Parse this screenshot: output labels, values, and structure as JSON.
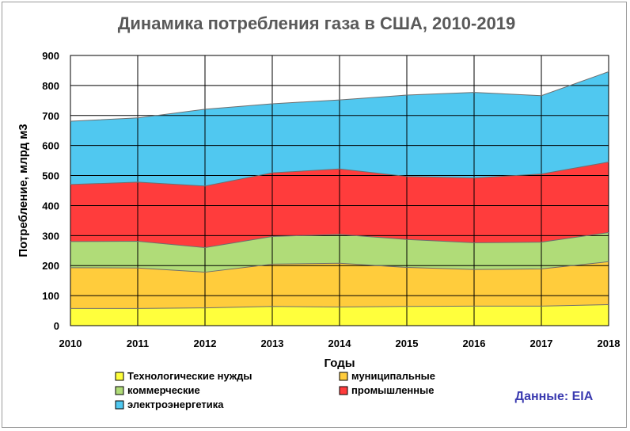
{
  "chart_data": {
    "type": "area",
    "stacked": true,
    "title": "Динамика потребления газа в США, 2010-2019",
    "xlabel": "Годы",
    "ylabel": "Потребление, млрд м3",
    "x": [
      2010,
      2011,
      2012,
      2013,
      2014,
      2015,
      2016,
      2017,
      2018
    ],
    "ylim": [
      0,
      900
    ],
    "yticks": [
      0,
      100,
      200,
      300,
      400,
      500,
      600,
      700,
      800,
      900
    ],
    "grid": true,
    "legend_position": "bottom",
    "series": [
      {
        "name": "Технологические нужды",
        "color": "#ffff3c",
        "values": [
          57,
          57,
          59,
          64,
          62,
          64,
          65,
          65,
          70
        ]
      },
      {
        "name": "муниципальные",
        "color": "#ffcc3c",
        "values": [
          136,
          135,
          119,
          141,
          146,
          130,
          122,
          124,
          143
        ]
      },
      {
        "name": "коммерческие",
        "color": "#b0dc78",
        "values": [
          87,
          89,
          82,
          92,
          96,
          93,
          89,
          89,
          97
        ]
      },
      {
        "name": "промышленные",
        "color": "#ff3c3c",
        "values": [
          190,
          197,
          205,
          212,
          218,
          210,
          216,
          227,
          235
        ]
      },
      {
        "name": "электроэнергетика",
        "color": "#50c8f0",
        "values": [
          211,
          214,
          256,
          230,
          230,
          271,
          285,
          261,
          301
        ]
      }
    ],
    "source_note": "Данные: EIA"
  }
}
